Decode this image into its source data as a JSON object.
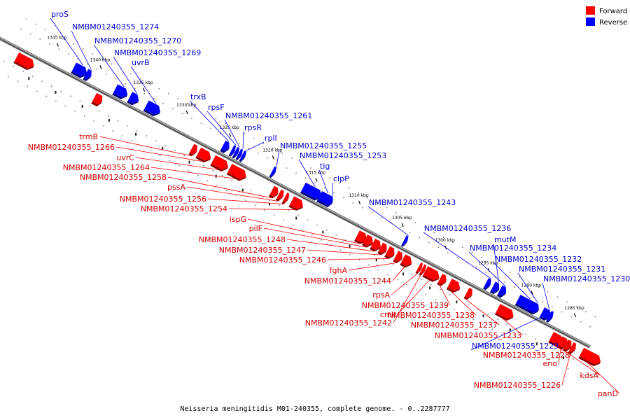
{
  "caption": "Neisseria meningitidis M01-240355, complete genome. - 0..2287777",
  "legend": [
    {
      "label": "Forward",
      "color": "#ff0000"
    },
    {
      "label": "Reverse",
      "color": "#0000ff"
    }
  ],
  "colors": {
    "forward": "#ff0000",
    "reverse": "#0000ff",
    "forward_label": "#d40000",
    "reverse_label": "#0000cc",
    "backbone": "#808080"
  },
  "ticks": [
    {
      "pos": 1345,
      "label": "1345 kbp"
    },
    {
      "pos": 1340,
      "label": "1340 kbp"
    },
    {
      "pos": 1335,
      "label": "1335 kbp"
    },
    {
      "pos": 1330,
      "label": "1330 kbp"
    },
    {
      "pos": 1325,
      "label": "1325 kbp"
    },
    {
      "pos": 1320,
      "label": "1320 kbp"
    },
    {
      "pos": 1315,
      "label": "1315 kbp"
    },
    {
      "pos": 1310,
      "label": "1310 kbp"
    },
    {
      "pos": 1305,
      "label": "1305 kbp"
    },
    {
      "pos": 1300,
      "label": "1300 kbp"
    },
    {
      "pos": 1295,
      "label": "1295 kbp"
    },
    {
      "pos": 1290,
      "label": "1290 kbp"
    },
    {
      "pos": 1285,
      "label": "1285 kbp"
    }
  ],
  "reverse_genes": [
    {
      "label": "proS",
      "kbp": 1342.3,
      "len": 1.5
    },
    {
      "label": "NMBM01240355_1274",
      "kbp": 1340.9,
      "len": 0.6
    },
    {
      "label": "NMBM01240355_1270",
      "kbp": 1337.5,
      "len": 1.4
    },
    {
      "label": "NMBM01240355_1269",
      "kbp": 1335.8,
      "len": 1.0
    },
    {
      "label": "uvrB",
      "kbp": 1333.9,
      "len": 1.6
    },
    {
      "label": "trxB",
      "kbp": 1325.0,
      "len": 0.7
    },
    {
      "label": "rpsF",
      "kbp": 1324.0,
      "len": 0.35
    },
    {
      "label": "NMBM01240355_1261",
      "kbp": 1323.6,
      "len": 0.3
    },
    {
      "label": "rpsR",
      "kbp": 1323.2,
      "len": 0.25
    },
    {
      "label": "rplI",
      "kbp": 1322.8,
      "len": 0.3
    },
    {
      "label": "NMBM01240355_1255",
      "kbp": 1319.3,
      "len": 0.25
    },
    {
      "label": "NMBM01240355_1253",
      "kbp": 1315.7,
      "len": 2.1
    },
    {
      "label": "tig",
      "kbp": 1313.8,
      "len": 1.3
    },
    {
      "label": "clpP",
      "kbp": 1312.9,
      "len": 0.6
    },
    {
      "label": "NMBM01240355_1243",
      "kbp": 1304.0,
      "len": 0.3
    },
    {
      "label": "NMBM01240355_1236",
      "kbp": 1294.5,
      "len": 0.5
    },
    {
      "label": "mutM",
      "kbp": 1293.7,
      "len": 0.7
    },
    {
      "label": "NMBM01240355_1234",
      "kbp": 1292.9,
      "len": 0.7
    },
    {
      "label": "NMBM01240355_1232",
      "kbp": 1290.8,
      "len": 2.2
    },
    {
      "label": "NMBM01240355_1231",
      "kbp": 1289.2,
      "len": 0.8
    },
    {
      "label": "NMBM01240355_1230",
      "kbp": 1288.0,
      "len": 1.0
    },
    {
      "label": "NMBM01240355_1229",
      "kbp": 1287.2,
      "len": 0.4
    }
  ],
  "forward_genes": [
    {
      "label": "",
      "kbp": 1348.0,
      "len": 2.0
    },
    {
      "label": "",
      "kbp": 1339.0,
      "len": 0.6
    },
    {
      "label": "",
      "kbp": 1338.7,
      "len": 0.6
    },
    {
      "label": "trmB",
      "kbp": 1327.7,
      "len": 0.6
    },
    {
      "label": "NMBM01240355_1266",
      "kbp": 1326.9,
      "len": 1.4
    },
    {
      "label": "uvrC",
      "kbp": 1325.2,
      "len": 1.7
    },
    {
      "label": "NMBM01240355_1264",
      "kbp": 1323.3,
      "len": 1.9
    },
    {
      "label": "NMBM01240355_1258",
      "kbp": 1318.4,
      "len": 0.7
    },
    {
      "label": "pssA",
      "kbp": 1317.6,
      "len": 0.5
    },
    {
      "label": "NMBM01240355_1256",
      "kbp": 1316.9,
      "len": 0.4
    },
    {
      "label": "NMBM01240355_1254",
      "kbp": 1316.1,
      "len": 1.3
    },
    {
      "label": "ispG",
      "kbp": 1308.5,
      "len": 1.1
    },
    {
      "label": "pilF",
      "kbp": 1307.6,
      "len": 0.9
    },
    {
      "label": "NMBM01240355_1248",
      "kbp": 1306.7,
      "len": 0.9
    },
    {
      "label": "NMBM01240355_1247",
      "kbp": 1305.8,
      "len": 0.7
    },
    {
      "label": "NMBM01240355_1246",
      "kbp": 1305.0,
      "len": 0.8
    },
    {
      "label": "fghA",
      "kbp": 1304.0,
      "len": 0.7
    },
    {
      "label": "NMBM01240355_1244",
      "kbp": 1303.2,
      "len": 1.0
    },
    {
      "label": "rpsA",
      "kbp": 1301.4,
      "len": 0.3
    },
    {
      "label": "cmk",
      "kbp": 1300.6,
      "len": 1.6
    },
    {
      "label": "NMBM01240355_1242",
      "kbp": 1301.0,
      "len": 0.3
    },
    {
      "label": "NMBM01240355_1239",
      "kbp": 1298.9,
      "len": 0.7
    },
    {
      "label": "NMBM01240355_1238",
      "kbp": 1297.8,
      "len": 1.2
    },
    {
      "label": "NMBM01240355_1237",
      "kbp": 1295.8,
      "len": 0.6
    },
    {
      "label": "NMBM01240355_1233",
      "kbp": 1292.2,
      "len": 1.8
    },
    {
      "label": "NMBM01240355_1228",
      "kbp": 1286.0,
      "len": 1.3
    },
    {
      "label": "eno",
      "kbp": 1285.0,
      "len": 0.9
    },
    {
      "label": "kdsA",
      "kbp": 1284.3,
      "len": 0.6
    },
    {
      "label": "NMBM01240355_1226",
      "kbp": 1283.7,
      "len": 0.5
    },
    {
      "label": "panD",
      "kbp": 1282.5,
      "len": 2.2
    }
  ]
}
